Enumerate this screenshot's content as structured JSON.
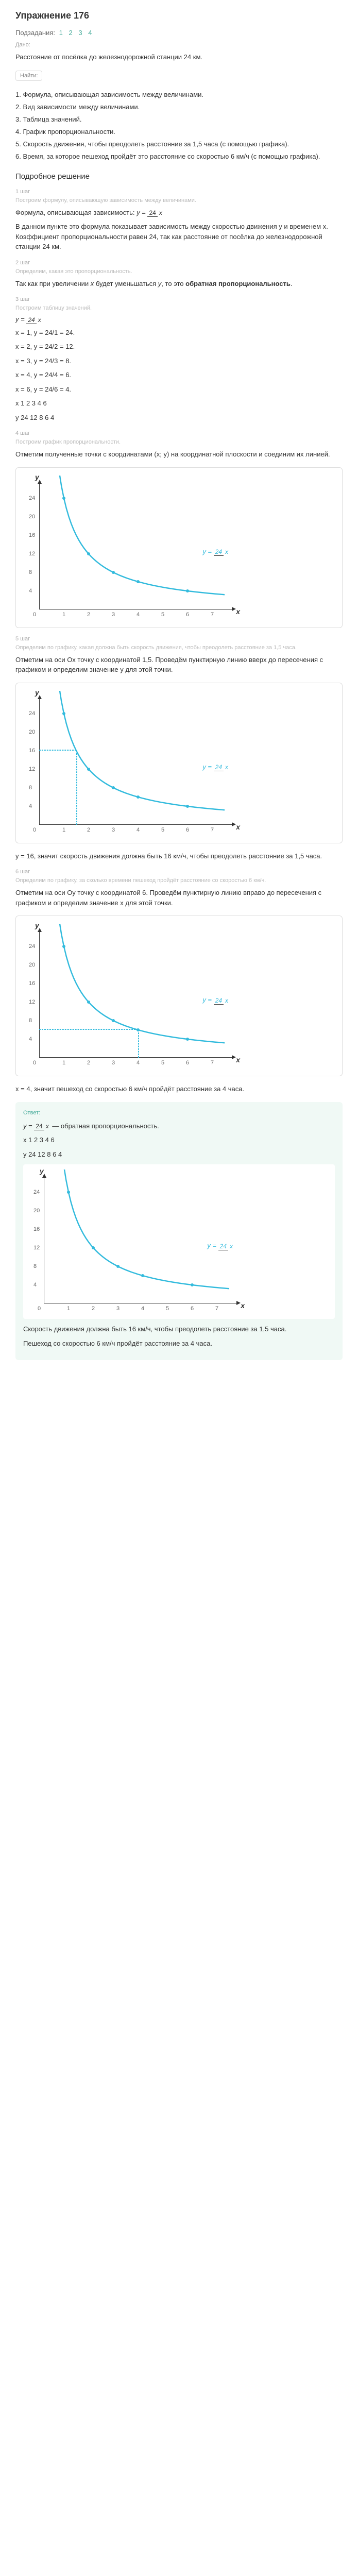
{
  "title": "Упражнение 176",
  "subsections": {
    "label": "Подзадания:",
    "items": [
      "1",
      "2",
      "3",
      "4"
    ]
  },
  "given": {
    "label": "Дано:",
    "text": "Расстояние от посёлка до железнодорожной станции 24 км."
  },
  "find": {
    "label": "Найти:",
    "items": [
      "1. Формула, описывающая зависимость между величинами.",
      "2. Вид зависимости между величинами.",
      "3. Таблица значений.",
      "4. График пропорциональности.",
      "5. Скорость движения, чтобы преодолеть расстояние за 1,5 часа (с помощью графика).",
      "6. Время, за которое пешеход пройдёт это расстояние со скоростью 6 км/ч (с помощью графика)."
    ]
  },
  "solution": {
    "title": "Подробное решение",
    "steps": [
      {
        "n": "1 шаг",
        "desc": "Построим формулу, описывающую зависимость между величинами.",
        "body": "Формула, описывающая зависимость: y = 24/x",
        "extra": "В данном пункте это формула показывает зависимость между скоростью движения y и временем x. Коэффициент пропорциональности равен 24, так как расстояние от посёлка до железнодорожной станции 24 км."
      },
      {
        "n": "2 шаг",
        "desc": "Определим, какая это пропорциональность.",
        "body": "Так как при увеличении x будет уменьшаться y, то это обратная пропорциональность."
      },
      {
        "n": "3 шаг",
        "desc": "Построим таблицу значений.",
        "formula": "y = 24/x",
        "calcs": [
          "x = 1, y = 24/1 = 24.",
          "x = 2, y = 24/2 = 12.",
          "x = 3, y = 24/3 = 8.",
          "x = 4, y = 24/4 = 6.",
          "x = 6, y = 24/6 = 4.",
          "x 1 2 3 4 6",
          "y 24 12 8 6 4"
        ]
      },
      {
        "n": "4 шаг",
        "desc": "Построим график пропорциональности.",
        "body": "Отметим полученные точки с координатами (x; y) на координатной плоскости и соединим их линией."
      },
      {
        "n": "5 шаг",
        "desc": "Определим по графику, какая должна быть скорость движения, чтобы преодолеть расстояние за 1,5 часа.",
        "body": "Отметим на оси Ox точку с координатой 1,5. Проведём пунктирную линию вверх до пересечения с графиком и определим значение y для этой точки.",
        "result": "y = 16, значит скорость движения должна быть 16 км/ч, чтобы преодолеть расстояние за 1,5 часа."
      },
      {
        "n": "6 шаг",
        "desc": "Определим по графику, за сколько времени пешеход пройдёт расстояние со скоростью 6 км/ч.",
        "body": "Отметим на оси Oy точку с координатой 6. Проведём пунктирную линию вправо до пересечения с графиком и определим значение x для этой точки.",
        "result": "x = 4, значит пешеход со скоростью 6 км/ч пройдёт расстояние за 4 часа."
      }
    ]
  },
  "answer": {
    "label": "Ответ:",
    "formula": "y = 24/x — обратная пропорциональность.",
    "tx": "x  1  2  3  4  6",
    "ty": "y  24  12  8  6  4",
    "line1": "Скорость движения должна быть 16 км/ч, чтобы преодолеть расстояние за 1,5 часа.",
    "line2": "Пешеход со скоростью 6 км/ч пройдёт расстояние за 4 часа."
  },
  "chart": {
    "curve_color": "#3bd",
    "points": [
      [
        1,
        24
      ],
      [
        2,
        12
      ],
      [
        3,
        8
      ],
      [
        4,
        6
      ],
      [
        6,
        4
      ]
    ],
    "xticks": [
      1,
      2,
      3,
      4,
      5,
      6,
      7
    ],
    "yticks": [
      4,
      8,
      12,
      16,
      20,
      24
    ],
    "eq": "y = 24/x",
    "xscale": 48,
    "yscale": 9,
    "ox": 30,
    "oy": 260
  }
}
